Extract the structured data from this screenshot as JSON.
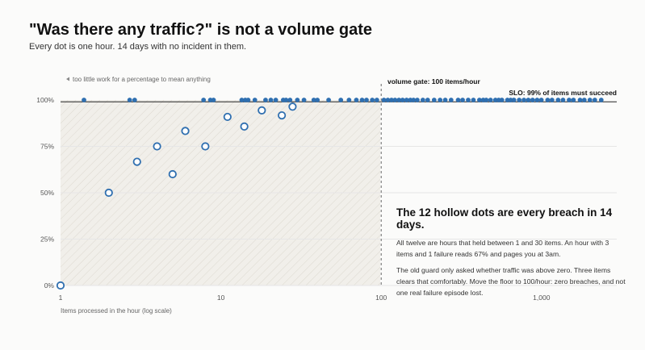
{
  "title": "\"Was there any traffic?\" is not a volume gate",
  "subtitle": "Every dot is one hour. 14 days with no incident in them.",
  "annotations": {
    "low_volume_note": "too little work for a percentage to mean anything",
    "gate_label": "volume gate: 100 items/hour",
    "slo_label": "SLO: 99% of items must succeed"
  },
  "panel": {
    "heading": "The 12 hollow dots are every breach in 14 days.",
    "para1": "All twelve are hours that held between 1 and 30 items. An hour with 3 items and 1 failure reads 67% and pages you at 3am.",
    "para2": "The old guard only asked whether traffic was above zero. Three items clears that comfortably. Move the floor to 100/hour: zero breaches, and not one real failure episode lost."
  },
  "colors": {
    "dot": "#2f6fb0",
    "gate_line": "#666666",
    "slo_line": "#222222",
    "grid": "#e6e6e6",
    "hatch_bg": "#f1efea",
    "hatch_line": "#dcd8cf"
  },
  "chart_data": {
    "type": "scatter",
    "x_scale": "log",
    "xlabel": "Items processed in the hour (log scale)",
    "ylabel": "",
    "xlim": [
      1,
      3000
    ],
    "ylim": [
      0,
      100
    ],
    "x_ticks": [
      {
        "value": 1,
        "label": "1"
      },
      {
        "value": 10,
        "label": "10"
      },
      {
        "value": 100,
        "label": "100"
      },
      {
        "value": 1000,
        "label": "1,000"
      }
    ],
    "y_ticks": [
      {
        "value": 0,
        "label": "0%"
      },
      {
        "value": 25,
        "label": "25%"
      },
      {
        "value": 50,
        "label": "50%"
      },
      {
        "value": 75,
        "label": "75%"
      },
      {
        "value": 100,
        "label": "100%"
      }
    ],
    "volume_gate": 100,
    "slo": 99,
    "grid": true,
    "breaches": [
      {
        "x": 1,
        "y": 0
      },
      {
        "x": 2,
        "y": 50
      },
      {
        "x": 3,
        "y": 66.7
      },
      {
        "x": 4,
        "y": 75
      },
      {
        "x": 5,
        "y": 60
      },
      {
        "x": 6,
        "y": 83.3
      },
      {
        "x": 8,
        "y": 75
      },
      {
        "x": 11,
        "y": 90.9
      },
      {
        "x": 14,
        "y": 85.7
      },
      {
        "x": 18,
        "y": 94.4
      },
      {
        "x": 24,
        "y": 91.7
      },
      {
        "x": 28,
        "y": 96.4
      }
    ],
    "ok_hours_x": [
      1.4,
      2.7,
      2.9,
      7.8,
      8.6,
      9,
      13.5,
      14.2,
      14.8,
      16.3,
      19,
      20.5,
      22,
      24.5,
      25.5,
      27,
      30,
      33,
      38,
      40,
      47,
      56,
      63,
      70,
      76,
      81,
      88,
      94,
      104,
      110,
      116,
      122,
      129,
      136,
      144,
      152,
      159,
      168,
      182,
      195,
      214,
      233,
      251,
      273,
      302,
      322,
      349,
      376,
      410,
      433,
      452,
      481,
      516,
      541,
      566,
      613,
      642,
      673,
      726,
      777,
      827,
      880,
      939,
      998,
      1092,
      1163,
      1269,
      1362,
      1486,
      1582,
      1739,
      1849,
      2004,
      2151,
      2358
    ]
  }
}
